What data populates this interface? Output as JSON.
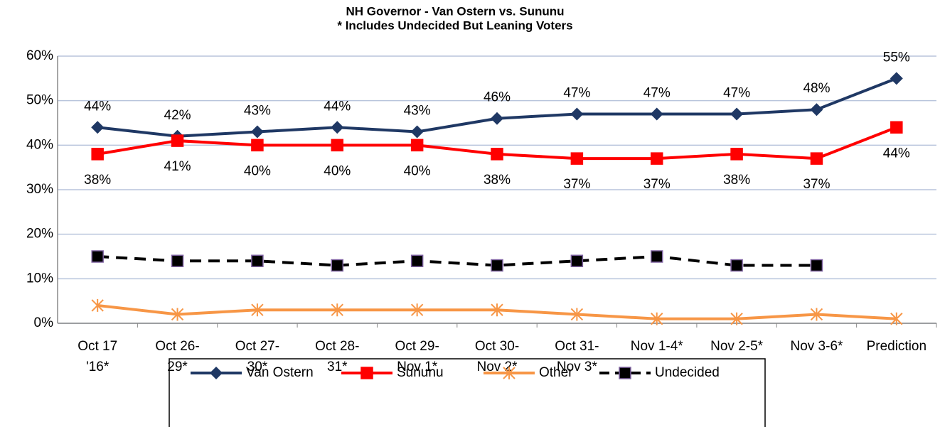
{
  "chart_data": {
    "type": "line",
    "title": "NH Governor - Van Ostern vs. Sununu",
    "subtitle": "* Includes Undecided But Leaning Voters",
    "categories": [
      "Oct 17\n'16*",
      "Oct 26-\n29*",
      "Oct 27-\n30*",
      "Oct 28-\n31*",
      "Oct 29-\nNov 1*",
      "Oct 30-\nNov 2*",
      "Oct 31-\nNov 3*",
      "Nov 1-4*",
      "Nov 2-5*",
      "Nov 3-6*",
      "Prediction"
    ],
    "series": [
      {
        "name": "Van Ostern",
        "color": "#1f3864",
        "marker": "diamond",
        "label_position": "above",
        "values": [
          44,
          42,
          43,
          44,
          43,
          46,
          47,
          47,
          47,
          48,
          55
        ],
        "value_labels": [
          "44%",
          "42%",
          "43%",
          "44%",
          "43%",
          "46%",
          "47%",
          "47%",
          "47%",
          "48%",
          "55%"
        ]
      },
      {
        "name": "Sununu",
        "color": "#ff0000",
        "marker": "square",
        "label_position": "below",
        "values": [
          38,
          41,
          40,
          40,
          40,
          38,
          37,
          37,
          38,
          37,
          44
        ],
        "value_labels": [
          "38%",
          "41%",
          "40%",
          "40%",
          "40%",
          "38%",
          "37%",
          "37%",
          "38%",
          "37%",
          "44%"
        ]
      },
      {
        "name": "Other",
        "color": "#f79646",
        "marker": "asterisk",
        "values": [
          4,
          2,
          3,
          3,
          3,
          3,
          2,
          1,
          1,
          2,
          1
        ]
      },
      {
        "name": "Undecided",
        "color": "#000000",
        "marker": "square",
        "dashed": true,
        "values": [
          15,
          14,
          14,
          13,
          14,
          13,
          14,
          15,
          13,
          13,
          null
        ]
      }
    ],
    "ylim": [
      0,
      60
    ],
    "yticks": [
      {
        "value": 0,
        "label": "0%"
      },
      {
        "value": 10,
        "label": "10%"
      },
      {
        "value": 20,
        "label": "20%"
      },
      {
        "value": 30,
        "label": "30%"
      },
      {
        "value": 40,
        "label": "40%"
      },
      {
        "value": 50,
        "label": "50%"
      },
      {
        "value": 60,
        "label": "60%"
      }
    ],
    "grid": true,
    "legend": "bottom"
  }
}
